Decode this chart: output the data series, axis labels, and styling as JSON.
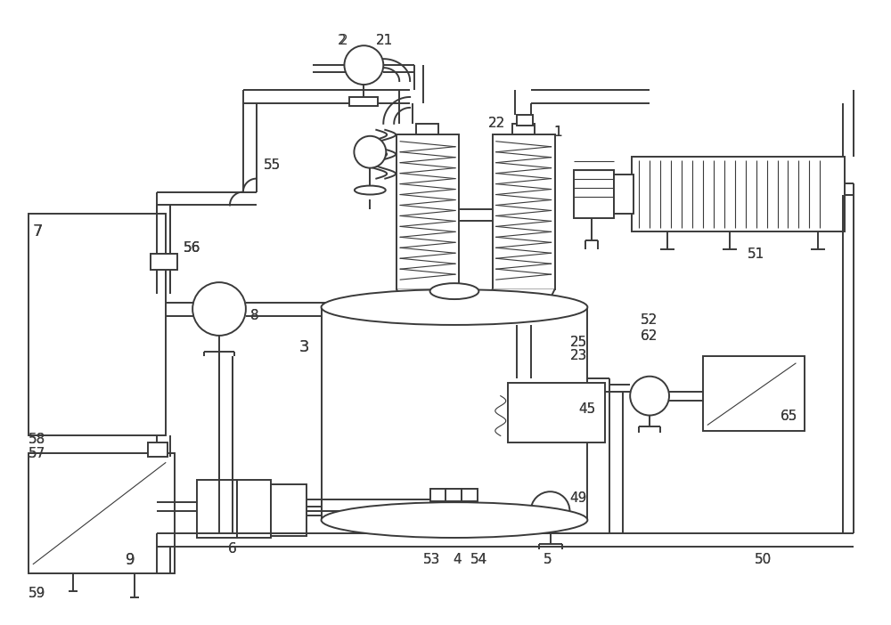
{
  "bg_color": "#ffffff",
  "line_color": "#3a3a3a",
  "lw": 1.4,
  "tlw": 0.8
}
